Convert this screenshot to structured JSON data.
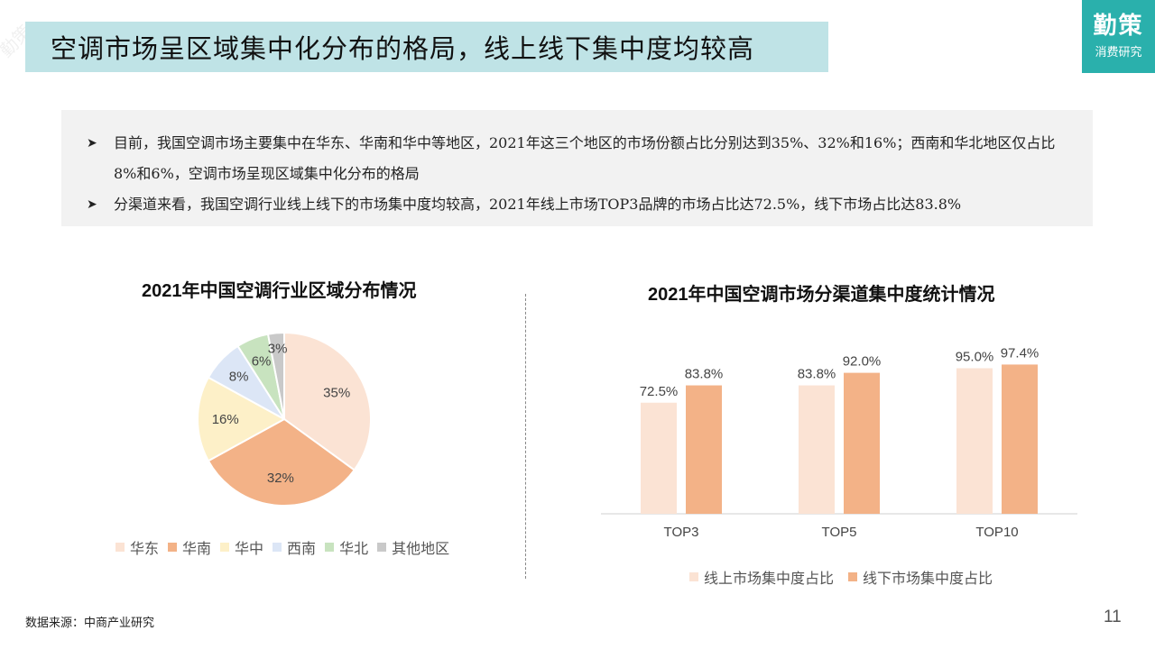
{
  "header": {
    "title": "空调市场呈区域集中化分布的格局，线上线下集中度均较高",
    "logo_main": "勤策",
    "logo_sub": "消费研究"
  },
  "summary": {
    "bullets": [
      "目前，我国空调市场主要集中在华东、华南和华中等地区，2021年这三个地区的市场份额占比分别达到35%、32%和16%；西南和华北地区仅占比8%和6%，空调市场呈现区域集中化分布的格局",
      "分渠道来看，我国空调行业线上线下的市场集中度均较高，2021年线上市场TOP3品牌的市场占比达72.5%，线下市场占比达83.8%"
    ]
  },
  "colors": {
    "title_bg": "#bfe3e6",
    "logo_bg": "#2ab0ac",
    "summary_bg": "#f2f2f2"
  },
  "chart_data": [
    {
      "type": "pie",
      "title": "2021年中国空调行业区域分布情况",
      "categories": [
        "华东",
        "华南",
        "华中",
        "西南",
        "华北",
        "其他地区"
      ],
      "values": [
        35,
        32,
        16,
        8,
        6,
        3
      ],
      "labels": [
        "35%",
        "32%",
        "16%",
        "8%",
        "6%",
        "3%"
      ],
      "colors": [
        "#fbe3d4",
        "#f3b287",
        "#fdf0c8",
        "#dce6f6",
        "#c8e3bf",
        "#c9c9c9"
      ],
      "legend_position": "bottom"
    },
    {
      "type": "bar",
      "title": "2021年中国空调市场分渠道集中度统计情况",
      "categories": [
        "TOP3",
        "TOP5",
        "TOP10"
      ],
      "series": [
        {
          "name": "线上市场集中度占比",
          "values": [
            72.5,
            83.8,
            95.0
          ],
          "labels": [
            "72.5%",
            "83.8%",
            "95.0%"
          ],
          "color": "#fbe3d4"
        },
        {
          "name": "线下市场集中度占比",
          "values": [
            83.8,
            92.0,
            97.4
          ],
          "labels": [
            "83.8%",
            "92.0%",
            "97.4%"
          ],
          "color": "#f3b287"
        }
      ],
      "ylim": [
        0,
        100
      ],
      "grid": false,
      "legend_position": "bottom"
    }
  ],
  "footer": {
    "source": "数据来源：中商产业研究",
    "page_number": "11"
  }
}
